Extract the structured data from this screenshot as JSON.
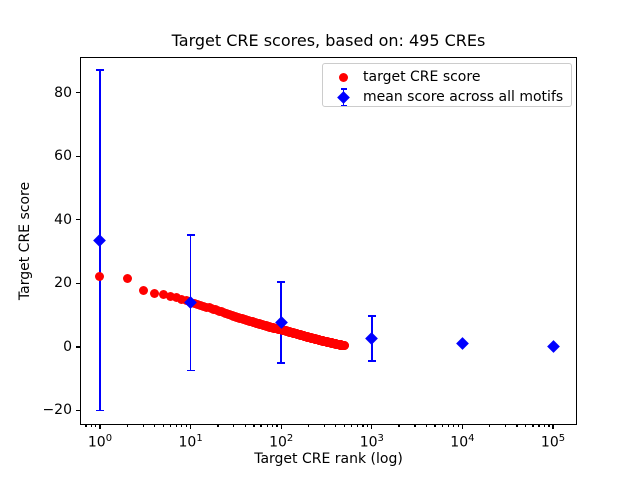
{
  "title": "Target CRE scores, based on: 495 CREs",
  "axes": {
    "xlabel": "Target CRE rank (log)",
    "ylabel": "Target CRE score",
    "x_scale": "log",
    "x_tick_exponents": [
      0,
      1,
      2,
      3,
      4,
      5
    ],
    "y_ticks": [
      -20,
      0,
      20,
      40,
      60,
      80
    ],
    "x_range_log10": [
      -0.2207,
      5.2646
    ],
    "y_range": [
      -24.6,
      91.2
    ],
    "grid": false
  },
  "legend": {
    "position": "upper right",
    "entries": [
      {
        "marker": "red-circle",
        "color": "#ff0000",
        "label": "target CRE score"
      },
      {
        "marker": "blue-diamond-errorbar",
        "color": "#0000ff",
        "label": "mean score across all motifs"
      }
    ]
  },
  "chart_data": {
    "type": "scatter",
    "title": "Target CRE scores, based on: 495 CREs",
    "xlabel": "Target CRE rank (log)",
    "ylabel": "Target CRE score",
    "x_scale": "log",
    "xlim_log10": [
      -0.2207,
      5.2646
    ],
    "ylim": [
      -24.6,
      91.2
    ],
    "series": [
      {
        "name": "target CRE score",
        "marker": "circle",
        "color": "#ff0000",
        "n_points": 495,
        "sampled_points": [
          [
            1,
            22.1
          ],
          [
            2,
            21.4
          ],
          [
            3,
            17.6
          ],
          [
            4,
            16.9
          ],
          [
            5,
            16.4
          ],
          [
            6,
            15.8
          ],
          [
            7,
            15.4
          ],
          [
            8,
            15.0
          ],
          [
            10,
            14.0
          ],
          [
            13,
            13.0
          ],
          [
            16,
            12.3
          ],
          [
            20,
            11.4
          ],
          [
            27,
            10.1
          ],
          [
            35,
            9.0
          ],
          [
            45,
            8.1
          ],
          [
            60,
            7.0
          ],
          [
            80,
            6.0
          ],
          [
            100,
            5.4
          ],
          [
            130,
            4.5
          ],
          [
            160,
            3.8
          ],
          [
            200,
            3.0
          ],
          [
            250,
            2.3
          ],
          [
            300,
            1.7
          ],
          [
            350,
            1.3
          ],
          [
            400,
            0.9
          ],
          [
            450,
            0.6
          ],
          [
            495,
            0.3
          ]
        ]
      },
      {
        "name": "mean score across all motifs",
        "marker": "diamond",
        "color": "#0000ff",
        "points": [
          {
            "x": 1,
            "mean": 33.5,
            "err": 53.5
          },
          {
            "x": 10,
            "mean": 13.8,
            "err": 21.3
          },
          {
            "x": 100,
            "mean": 7.6,
            "err": 12.7
          },
          {
            "x": 1000,
            "mean": 2.6,
            "err": 7.0
          },
          {
            "x": 10000,
            "mean": 0.9,
            "err": 0.0
          },
          {
            "x": 100000,
            "mean": 0.1,
            "err": 0.0
          }
        ]
      }
    ]
  }
}
